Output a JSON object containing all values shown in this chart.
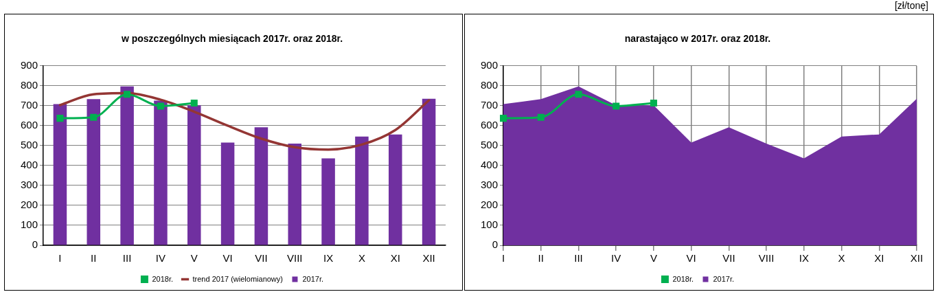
{
  "chart_data": [
    {
      "type": "bar",
      "title": "w poszczególnych miesiącach 2017r. oraz 2018r.",
      "categories": [
        "I",
        "II",
        "III",
        "IV",
        "V",
        "VI",
        "VII",
        "VIII",
        "IX",
        "X",
        "XI",
        "XII"
      ],
      "ylim": [
        0,
        900
      ],
      "yticks": [
        0,
        100,
        200,
        300,
        400,
        500,
        600,
        700,
        800,
        900
      ],
      "grid": "y",
      "legend": "bottom",
      "series": [
        {
          "name": "2017r.",
          "type": "bar",
          "color": "#7030a0",
          "values": [
            708,
            733,
            797,
            725,
            702,
            515,
            592,
            510,
            436,
            545,
            556,
            735
          ]
        },
        {
          "name": "2018r.",
          "type": "line",
          "color": "#00b050",
          "marker": "square",
          "values": [
            637,
            642,
            757,
            698,
            713,
            null,
            null,
            null,
            null,
            null,
            null,
            null
          ]
        },
        {
          "name": "trend 2017 (wielomianowy)",
          "type": "line",
          "color": "#943634",
          "marker": "none",
          "values": [
            703,
            757,
            763,
            730,
            670,
            600,
            535,
            492,
            480,
            505,
            578,
            727
          ]
        }
      ]
    },
    {
      "type": "area",
      "title": "narastająco w 2017r. oraz 2018r.",
      "categories": [
        "I",
        "II",
        "III",
        "IV",
        "V",
        "VI",
        "VII",
        "VIII",
        "IX",
        "X",
        "XI",
        "XII"
      ],
      "ylim": [
        0,
        900
      ],
      "yticks": [
        0,
        100,
        200,
        300,
        400,
        500,
        600,
        700,
        800,
        900
      ],
      "grid": true,
      "legend": "bottom",
      "annotations": [
        "[zł/tonę]"
      ],
      "series": [
        {
          "name": "2017r.",
          "type": "area",
          "color": "#7030a0",
          "values": [
            708,
            733,
            797,
            702,
            702,
            515,
            592,
            510,
            436,
            545,
            556,
            735
          ]
        },
        {
          "name": "2018r.",
          "type": "line",
          "color": "#00b050",
          "marker": "square",
          "values": [
            637,
            642,
            757,
            698,
            713,
            null,
            null,
            null,
            null,
            null,
            null,
            null
          ]
        }
      ]
    }
  ]
}
